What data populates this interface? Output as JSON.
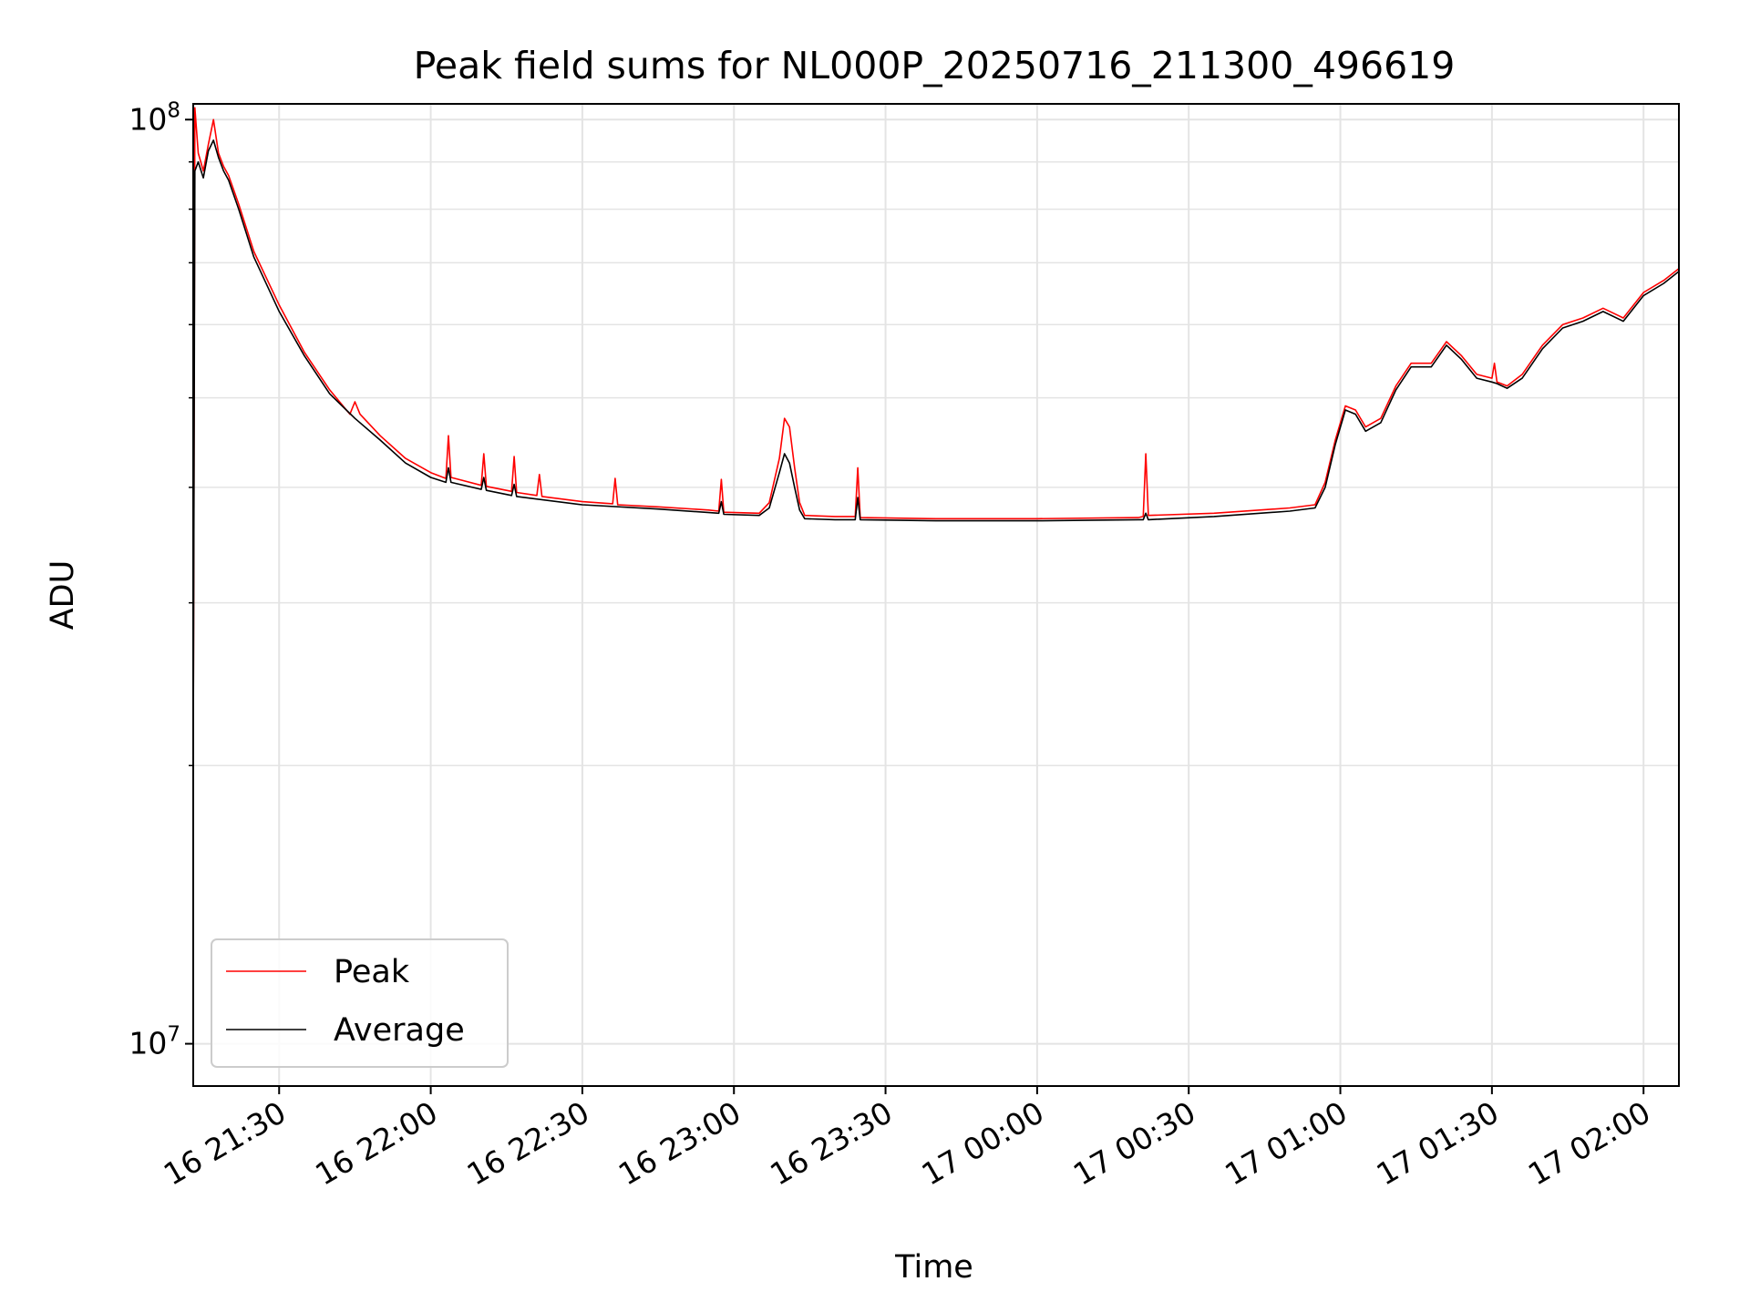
{
  "chart_data": {
    "type": "line",
    "title": "Peak field sums for NL000P_20250716_211300_496619",
    "xlabel": "Time",
    "ylabel": "ADU",
    "yscale": "log",
    "ylim": [
      9000000,
      104000000
    ],
    "xlim": [
      "2025-07-16 21:13",
      "2025-07-17 02:07"
    ],
    "x_ticks": [
      {
        "value": "2025-07-16 21:30",
        "label": "16 21:30"
      },
      {
        "value": "2025-07-16 22:00",
        "label": "16 22:00"
      },
      {
        "value": "2025-07-16 22:30",
        "label": "16 22:30"
      },
      {
        "value": "2025-07-16 23:00",
        "label": "16 23:00"
      },
      {
        "value": "2025-07-16 23:30",
        "label": "16 23:30"
      },
      {
        "value": "2025-07-17 00:00",
        "label": "17 00:00"
      },
      {
        "value": "2025-07-17 00:30",
        "label": "17 00:30"
      },
      {
        "value": "2025-07-17 01:00",
        "label": "17 01:00"
      },
      {
        "value": "2025-07-17 01:30",
        "label": "17 01:30"
      },
      {
        "value": "2025-07-17 02:00",
        "label": "17 02:00"
      }
    ],
    "y_ticks_major": [
      {
        "value": 10000000,
        "base": "10",
        "exp": "7"
      },
      {
        "value": 100000000,
        "base": "10",
        "exp": "8"
      }
    ],
    "y_ticks_minor": [
      20000000,
      30000000,
      40000000,
      50000000,
      60000000,
      70000000,
      80000000,
      90000000
    ],
    "grid": true,
    "legend_position": "lower-left",
    "series": [
      {
        "name": "Peak",
        "color": "#ff0000",
        "points": [
          [
            "2025-07-16 21:13",
            20000000
          ],
          [
            "2025-07-16 21:13:20",
            103000000
          ],
          [
            "2025-07-16 21:14",
            92000000
          ],
          [
            "2025-07-16 21:15",
            88000000
          ],
          [
            "2025-07-16 21:16",
            94000000
          ],
          [
            "2025-07-16 21:17",
            100000000
          ],
          [
            "2025-07-16 21:18",
            92000000
          ],
          [
            "2025-07-16 21:19",
            89000000
          ],
          [
            "2025-07-16 21:20",
            87000000
          ],
          [
            "2025-07-16 21:22",
            81000000
          ],
          [
            "2025-07-16 21:25",
            72000000
          ],
          [
            "2025-07-16 21:30",
            63000000
          ],
          [
            "2025-07-16 21:35",
            56000000
          ],
          [
            "2025-07-16 21:40",
            51000000
          ],
          [
            "2025-07-16 21:44",
            48000000
          ],
          [
            "2025-07-16 21:45",
            49500000
          ],
          [
            "2025-07-16 21:46",
            48000000
          ],
          [
            "2025-07-16 21:50",
            45500000
          ],
          [
            "2025-07-16 21:55",
            43000000
          ],
          [
            "2025-07-16 22:00",
            41500000
          ],
          [
            "2025-07-16 22:03",
            40900000
          ],
          [
            "2025-07-16 22:03:30",
            45500000
          ],
          [
            "2025-07-16 22:04",
            41000000
          ],
          [
            "2025-07-16 22:10",
            40200000
          ],
          [
            "2025-07-16 22:10:30",
            43500000
          ],
          [
            "2025-07-16 22:11",
            40100000
          ],
          [
            "2025-07-16 22:16",
            39600000
          ],
          [
            "2025-07-16 22:16:30",
            43200000
          ],
          [
            "2025-07-16 22:17",
            39500000
          ],
          [
            "2025-07-16 22:21",
            39200000
          ],
          [
            "2025-07-16 22:21:30",
            41300000
          ],
          [
            "2025-07-16 22:22",
            39100000
          ],
          [
            "2025-07-16 22:30",
            38600000
          ],
          [
            "2025-07-16 22:36",
            38400000
          ],
          [
            "2025-07-16 22:36:30",
            40900000
          ],
          [
            "2025-07-16 22:37",
            38300000
          ],
          [
            "2025-07-16 22:45",
            38100000
          ],
          [
            "2025-07-16 22:55",
            37800000
          ],
          [
            "2025-07-16 22:57",
            37700000
          ],
          [
            "2025-07-16 22:57:30",
            40800000
          ],
          [
            "2025-07-16 22:58",
            37600000
          ],
          [
            "2025-07-16 23:05",
            37500000
          ],
          [
            "2025-07-16 23:07",
            38500000
          ],
          [
            "2025-07-16 23:09",
            43000000
          ],
          [
            "2025-07-16 23:10",
            47500000
          ],
          [
            "2025-07-16 23:11",
            46500000
          ],
          [
            "2025-07-16 23:12",
            42000000
          ],
          [
            "2025-07-16 23:13",
            38500000
          ],
          [
            "2025-07-16 23:14",
            37300000
          ],
          [
            "2025-07-16 23:20",
            37200000
          ],
          [
            "2025-07-16 23:24",
            37200000
          ],
          [
            "2025-07-16 23:24:30",
            42000000
          ],
          [
            "2025-07-16 23:25",
            37100000
          ],
          [
            "2025-07-16 23:40",
            37000000
          ],
          [
            "2025-07-17 00:00",
            37000000
          ],
          [
            "2025-07-17 00:20",
            37100000
          ],
          [
            "2025-07-17 00:21",
            37200000
          ],
          [
            "2025-07-17 00:21:30",
            43500000
          ],
          [
            "2025-07-17 00:22",
            37300000
          ],
          [
            "2025-07-17 00:35",
            37500000
          ],
          [
            "2025-07-17 00:50",
            38000000
          ],
          [
            "2025-07-17 00:55",
            38300000
          ],
          [
            "2025-07-17 00:57",
            40500000
          ],
          [
            "2025-07-17 00:59",
            45000000
          ],
          [
            "2025-07-17 01:01",
            49000000
          ],
          [
            "2025-07-17 01:03",
            48500000
          ],
          [
            "2025-07-17 01:05",
            46500000
          ],
          [
            "2025-07-17 01:08",
            47500000
          ],
          [
            "2025-07-17 01:11",
            51500000
          ],
          [
            "2025-07-17 01:14",
            54500000
          ],
          [
            "2025-07-17 01:18",
            54500000
          ],
          [
            "2025-07-17 01:21",
            57500000
          ],
          [
            "2025-07-17 01:24",
            55500000
          ],
          [
            "2025-07-17 01:27",
            53000000
          ],
          [
            "2025-07-17 01:30",
            52500000
          ],
          [
            "2025-07-17 01:30:30",
            54500000
          ],
          [
            "2025-07-17 01:31",
            52000000
          ],
          [
            "2025-07-17 01:33",
            51500000
          ],
          [
            "2025-07-17 01:36",
            53000000
          ],
          [
            "2025-07-17 01:40",
            57000000
          ],
          [
            "2025-07-17 01:44",
            60000000
          ],
          [
            "2025-07-17 01:48",
            61000000
          ],
          [
            "2025-07-17 01:52",
            62500000
          ],
          [
            "2025-07-17 01:56",
            61000000
          ],
          [
            "2025-07-17 02:00",
            65000000
          ],
          [
            "2025-07-17 02:04",
            67000000
          ],
          [
            "2025-07-17 02:07",
            69000000
          ]
        ]
      },
      {
        "name": "Average",
        "color": "#000000",
        "points": [
          [
            "2025-07-16 21:13",
            20000000
          ],
          [
            "2025-07-16 21:13:20",
            88000000
          ],
          [
            "2025-07-16 21:14",
            90000000
          ],
          [
            "2025-07-16 21:15",
            86500000
          ],
          [
            "2025-07-16 21:16",
            92500000
          ],
          [
            "2025-07-16 21:17",
            95000000
          ],
          [
            "2025-07-16 21:18",
            91000000
          ],
          [
            "2025-07-16 21:19",
            88000000
          ],
          [
            "2025-07-16 21:20",
            86000000
          ],
          [
            "2025-07-16 21:22",
            80000000
          ],
          [
            "2025-07-16 21:25",
            71000000
          ],
          [
            "2025-07-16 21:30",
            62000000
          ],
          [
            "2025-07-16 21:35",
            55500000
          ],
          [
            "2025-07-16 21:40",
            50500000
          ],
          [
            "2025-07-16 21:45",
            47500000
          ],
          [
            "2025-07-16 21:50",
            45000000
          ],
          [
            "2025-07-16 21:55",
            42500000
          ],
          [
            "2025-07-16 22:00",
            41000000
          ],
          [
            "2025-07-16 22:03",
            40500000
          ],
          [
            "2025-07-16 22:03:30",
            42000000
          ],
          [
            "2025-07-16 22:04",
            40500000
          ],
          [
            "2025-07-16 22:10",
            39800000
          ],
          [
            "2025-07-16 22:10:30",
            41000000
          ],
          [
            "2025-07-16 22:11",
            39700000
          ],
          [
            "2025-07-16 22:16",
            39200000
          ],
          [
            "2025-07-16 22:16:30",
            40300000
          ],
          [
            "2025-07-16 22:17",
            39100000
          ],
          [
            "2025-07-16 22:30",
            38300000
          ],
          [
            "2025-07-16 22:45",
            37900000
          ],
          [
            "2025-07-16 22:57",
            37500000
          ],
          [
            "2025-07-16 22:57:30",
            38600000
          ],
          [
            "2025-07-16 22:58",
            37400000
          ],
          [
            "2025-07-16 23:05",
            37300000
          ],
          [
            "2025-07-16 23:07",
            38000000
          ],
          [
            "2025-07-16 23:09",
            41500000
          ],
          [
            "2025-07-16 23:10",
            43500000
          ],
          [
            "2025-07-16 23:11",
            42500000
          ],
          [
            "2025-07-16 23:12",
            40000000
          ],
          [
            "2025-07-16 23:13",
            37800000
          ],
          [
            "2025-07-16 23:14",
            37000000
          ],
          [
            "2025-07-16 23:20",
            36900000
          ],
          [
            "2025-07-16 23:24",
            36900000
          ],
          [
            "2025-07-16 23:24:30",
            39000000
          ],
          [
            "2025-07-16 23:25",
            36900000
          ],
          [
            "2025-07-16 23:40",
            36800000
          ],
          [
            "2025-07-17 00:00",
            36800000
          ],
          [
            "2025-07-17 00:20",
            36900000
          ],
          [
            "2025-07-17 00:21",
            36900000
          ],
          [
            "2025-07-17 00:21:30",
            37500000
          ],
          [
            "2025-07-17 00:22",
            36900000
          ],
          [
            "2025-07-17 00:35",
            37200000
          ],
          [
            "2025-07-17 00:50",
            37700000
          ],
          [
            "2025-07-17 00:55",
            38000000
          ],
          [
            "2025-07-17 00:57",
            40000000
          ],
          [
            "2025-07-17 00:59",
            44500000
          ],
          [
            "2025-07-17 01:01",
            48500000
          ],
          [
            "2025-07-17 01:03",
            48000000
          ],
          [
            "2025-07-17 01:05",
            46000000
          ],
          [
            "2025-07-17 01:08",
            47000000
          ],
          [
            "2025-07-17 01:11",
            51000000
          ],
          [
            "2025-07-17 01:14",
            54000000
          ],
          [
            "2025-07-17 01:18",
            54000000
          ],
          [
            "2025-07-17 01:21",
            57000000
          ],
          [
            "2025-07-17 01:24",
            55000000
          ],
          [
            "2025-07-17 01:27",
            52500000
          ],
          [
            "2025-07-17 01:30",
            52000000
          ],
          [
            "2025-07-17 01:31",
            51800000
          ],
          [
            "2025-07-17 01:33",
            51200000
          ],
          [
            "2025-07-17 01:36",
            52500000
          ],
          [
            "2025-07-17 01:40",
            56500000
          ],
          [
            "2025-07-17 01:44",
            59500000
          ],
          [
            "2025-07-17 01:48",
            60500000
          ],
          [
            "2025-07-17 01:52",
            62000000
          ],
          [
            "2025-07-17 01:56",
            60500000
          ],
          [
            "2025-07-17 02:00",
            64500000
          ],
          [
            "2025-07-17 02:04",
            66500000
          ],
          [
            "2025-07-17 02:07",
            68500000
          ]
        ]
      }
    ]
  }
}
